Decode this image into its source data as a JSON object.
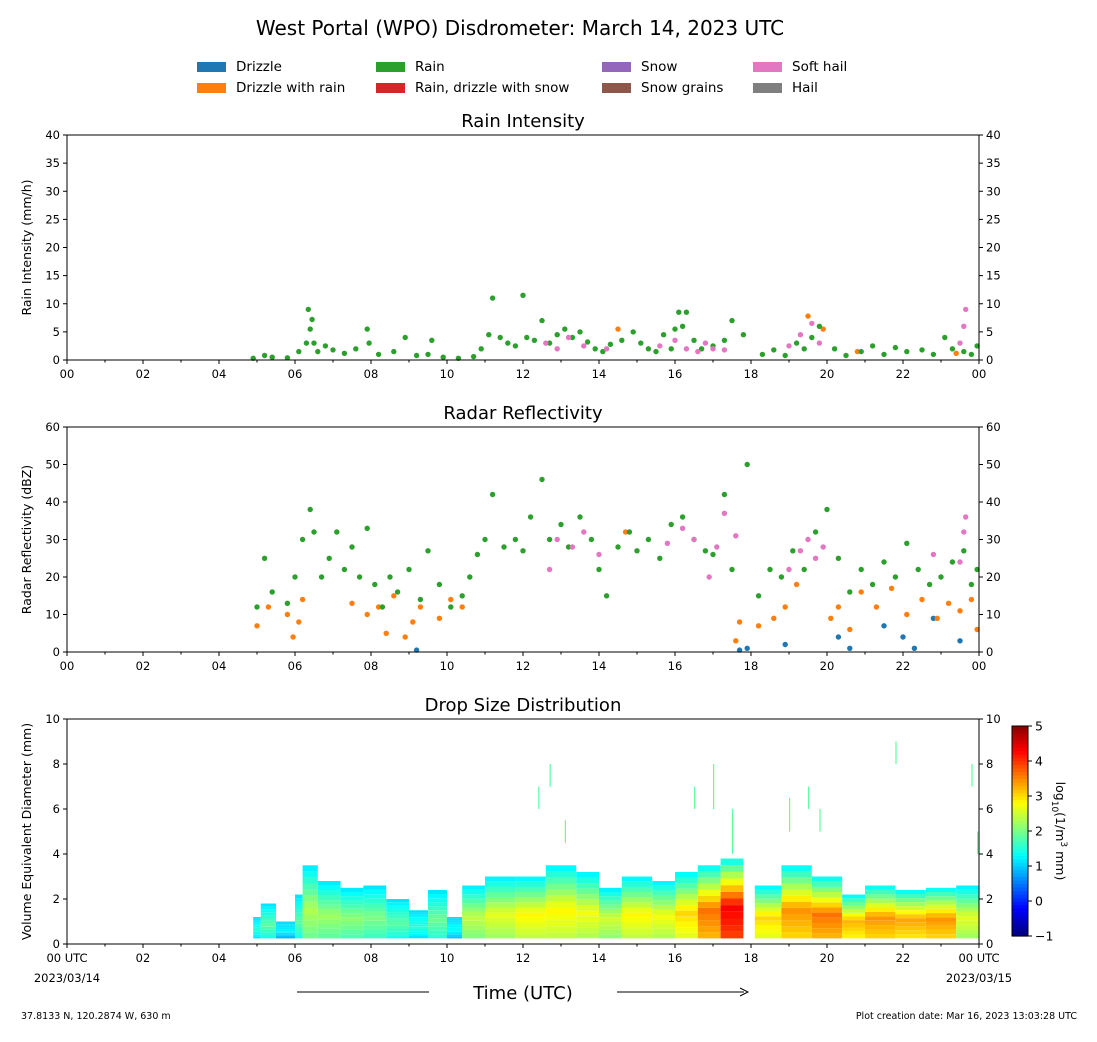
{
  "title": "West Portal (WPO) Disdrometer: March 14, 2023 UTC",
  "legend": [
    {
      "label": "Drizzle",
      "color": "#1f77b4"
    },
    {
      "label": "Drizzle with rain",
      "color": "#ff7f0e"
    },
    {
      "label": "Rain",
      "color": "#2ca02c"
    },
    {
      "label": "Rain, drizzle with snow",
      "color": "#d62728"
    },
    {
      "label": "Snow",
      "color": "#9467bd"
    },
    {
      "label": "Snow grains",
      "color": "#8c564b"
    },
    {
      "label": "Soft hail",
      "color": "#e377c2"
    },
    {
      "label": "Hail",
      "color": "#7f7f7f"
    }
  ],
  "xlabel": "Time (UTC)",
  "footer": {
    "location": "37.8133 N, 120.2874 W, 630 m",
    "created": "Plot creation date: Mar 16, 2023 13:03:28 UTC"
  },
  "chart_data": [
    {
      "type": "scatter",
      "title": "Rain Intensity",
      "ylabel": "Rain Intensity (mm/h)",
      "xlim": [
        0,
        24
      ],
      "ylim": [
        0,
        40
      ],
      "yticks": [
        "0",
        "5",
        "10",
        "15",
        "20",
        "25",
        "30",
        "35",
        "40"
      ],
      "xticks": [
        "00",
        "02",
        "04",
        "06",
        "08",
        "10",
        "12",
        "14",
        "16",
        "18",
        "20",
        "22",
        "00"
      ],
      "series": [
        {
          "name": "Drizzle with rain",
          "color": "#ff7f0e",
          "x": [
            14.5,
            19.5,
            19.9,
            20.8,
            23.4
          ],
          "y": [
            5.5,
            7.8,
            5.5,
            1.5,
            1.2
          ]
        },
        {
          "name": "Rain",
          "color": "#2ca02c",
          "x": [
            4.9,
            5.2,
            5.4,
            5.8,
            6.1,
            6.3,
            6.35,
            6.4,
            6.45,
            6.5,
            6.6,
            6.8,
            7.0,
            7.3,
            7.6,
            7.9,
            7.95,
            8.2,
            8.6,
            8.9,
            9.2,
            9.5,
            9.6,
            9.9,
            10.3,
            10.7,
            10.9,
            11.1,
            11.2,
            11.4,
            11.6,
            11.8,
            12.0,
            12.1,
            12.3,
            12.5,
            12.7,
            12.9,
            13.1,
            13.3,
            13.5,
            13.7,
            13.9,
            14.1,
            14.3,
            14.6,
            14.9,
            15.1,
            15.3,
            15.5,
            15.7,
            15.9,
            16.0,
            16.1,
            16.2,
            16.3,
            16.5,
            16.7,
            17.0,
            17.3,
            17.5,
            17.8,
            18.3,
            18.6,
            18.9,
            19.2,
            19.4,
            19.6,
            19.8,
            20.2,
            20.5,
            20.9,
            21.2,
            21.5,
            21.8,
            22.1,
            22.5,
            22.8,
            23.1,
            23.3,
            23.6,
            23.8,
            23.95
          ],
          "y": [
            0.3,
            0.8,
            0.5,
            0.4,
            1.5,
            3.0,
            9.0,
            5.5,
            7.2,
            3.0,
            1.5,
            2.5,
            1.8,
            1.2,
            2.0,
            5.5,
            3.0,
            1.0,
            1.5,
            4.0,
            0.8,
            1.0,
            3.5,
            0.5,
            0.3,
            0.6,
            2.0,
            4.5,
            11.0,
            4.0,
            3.0,
            2.5,
            11.5,
            4.0,
            3.5,
            7.0,
            3.0,
            4.5,
            5.5,
            4.0,
            5.0,
            3.2,
            2.0,
            1.5,
            2.8,
            3.5,
            5.0,
            3.0,
            2.0,
            1.5,
            4.5,
            2.0,
            5.5,
            8.5,
            6.0,
            8.5,
            3.5,
            2.0,
            2.5,
            3.5,
            7.0,
            4.5,
            1.0,
            1.8,
            0.8,
            3.0,
            2.0,
            4.0,
            6.0,
            2.0,
            0.8,
            1.5,
            2.5,
            1.0,
            2.2,
            1.5,
            1.8,
            1.0,
            4.0,
            2.0,
            1.5,
            1.0,
            2.5
          ]
        },
        {
          "name": "Soft hail",
          "color": "#e377c2",
          "x": [
            12.6,
            12.9,
            13.2,
            13.6,
            14.2,
            15.6,
            16.0,
            16.3,
            16.6,
            16.8,
            17.0,
            17.3,
            19.0,
            19.3,
            19.6,
            19.8,
            23.5,
            23.6,
            23.65
          ],
          "y": [
            3.0,
            2.0,
            4.0,
            2.5,
            2.0,
            2.5,
            3.5,
            2.0,
            1.5,
            3.0,
            2.0,
            1.8,
            2.5,
            4.5,
            6.5,
            3.0,
            3.0,
            6.0,
            9.0
          ]
        }
      ]
    },
    {
      "type": "scatter",
      "title": "Radar Reflectivity",
      "ylabel": "Radar Reflectivity (dBZ)",
      "xlim": [
        0,
        24
      ],
      "ylim": [
        0,
        60
      ],
      "yticks": [
        "0",
        "10",
        "20",
        "30",
        "40",
        "50",
        "60"
      ],
      "xticks": [
        "00",
        "02",
        "04",
        "06",
        "08",
        "10",
        "12",
        "14",
        "16",
        "18",
        "20",
        "22",
        "00"
      ],
      "series": [
        {
          "name": "Drizzle",
          "color": "#1f77b4",
          "x": [
            9.2,
            17.7,
            17.9,
            18.9,
            20.3,
            20.6,
            21.5,
            22.0,
            22.3,
            22.8,
            23.5
          ],
          "y": [
            0.5,
            0.5,
            1.0,
            2.0,
            4.0,
            1.0,
            7.0,
            4.0,
            1.0,
            9.0,
            3.0
          ]
        },
        {
          "name": "Drizzle with rain",
          "color": "#ff7f0e",
          "x": [
            5.0,
            5.3,
            5.8,
            5.95,
            6.1,
            6.2,
            7.5,
            7.9,
            8.2,
            8.4,
            8.6,
            8.9,
            9.1,
            9.3,
            9.8,
            10.1,
            10.4,
            14.7,
            17.6,
            17.7,
            18.2,
            18.6,
            18.9,
            19.2,
            20.1,
            20.3,
            20.6,
            20.9,
            21.3,
            21.7,
            22.1,
            22.5,
            22.9,
            23.2,
            23.5,
            23.8,
            23.95
          ],
          "y": [
            7.0,
            12.0,
            10.0,
            4.0,
            8.0,
            14.0,
            13.0,
            10.0,
            12.0,
            5.0,
            15.0,
            4.0,
            8.0,
            12.0,
            9.0,
            14.0,
            12.0,
            32.0,
            3.0,
            8.0,
            7.0,
            9.0,
            12.0,
            18.0,
            9.0,
            12.0,
            6.0,
            16.0,
            12.0,
            17.0,
            10.0,
            14.0,
            9.0,
            13.0,
            11.0,
            14.0,
            6.0
          ]
        },
        {
          "name": "Rain",
          "color": "#2ca02c",
          "x": [
            5.0,
            5.2,
            5.4,
            5.8,
            6.0,
            6.2,
            6.4,
            6.5,
            6.7,
            6.9,
            7.1,
            7.3,
            7.5,
            7.7,
            7.9,
            8.1,
            8.3,
            8.5,
            8.7,
            9.0,
            9.3,
            9.5,
            9.8,
            10.1,
            10.4,
            10.6,
            10.8,
            11.0,
            11.2,
            11.5,
            11.8,
            12.0,
            12.2,
            12.5,
            12.7,
            13.0,
            13.2,
            13.5,
            13.8,
            14.0,
            14.2,
            14.5,
            14.8,
            15.0,
            15.3,
            15.6,
            15.9,
            16.2,
            16.5,
            16.8,
            17.0,
            17.3,
            17.5,
            17.9,
            18.2,
            18.5,
            18.8,
            19.1,
            19.4,
            19.7,
            20.0,
            20.3,
            20.6,
            20.9,
            21.2,
            21.5,
            21.8,
            22.1,
            22.4,
            22.7,
            23.0,
            23.3,
            23.6,
            23.8,
            23.95
          ],
          "y": [
            12.0,
            25.0,
            16.0,
            13.0,
            20.0,
            30.0,
            38.0,
            32.0,
            20.0,
            25.0,
            32.0,
            22.0,
            28.0,
            20.0,
            33.0,
            18.0,
            12.0,
            20.0,
            16.0,
            22.0,
            14.0,
            27.0,
            18.0,
            12.0,
            15.0,
            20.0,
            26.0,
            30.0,
            42.0,
            28.0,
            30.0,
            27.0,
            36.0,
            46.0,
            30.0,
            34.0,
            28.0,
            36.0,
            30.0,
            22.0,
            15.0,
            28.0,
            32.0,
            27.0,
            30.0,
            25.0,
            34.0,
            36.0,
            30.0,
            27.0,
            26.0,
            42.0,
            22.0,
            50.0,
            15.0,
            22.0,
            20.0,
            27.0,
            22.0,
            32.0,
            38.0,
            25.0,
            16.0,
            22.0,
            18.0,
            24.0,
            20.0,
            29.0,
            22.0,
            18.0,
            20.0,
            24.0,
            27.0,
            18.0,
            22.0
          ]
        },
        {
          "name": "Soft hail",
          "color": "#e377c2",
          "x": [
            12.7,
            12.9,
            13.3,
            13.6,
            14.0,
            15.8,
            16.2,
            16.5,
            16.9,
            17.1,
            17.3,
            17.6,
            19.0,
            19.3,
            19.5,
            19.7,
            19.9,
            22.8,
            23.5,
            23.6,
            23.65
          ],
          "y": [
            22.0,
            30.0,
            28.0,
            32.0,
            26.0,
            29.0,
            33.0,
            30.0,
            20.0,
            28.0,
            37.0,
            31.0,
            22.0,
            27.0,
            30.0,
            25.0,
            28.0,
            26.0,
            24.0,
            32.0,
            36.0
          ]
        }
      ]
    },
    {
      "type": "heatmap",
      "title": "Drop Size Distribution",
      "ylabel": "Volume Equivalent Diameter (mm)",
      "xlim": [
        0,
        24
      ],
      "ylim": [
        0,
        10
      ],
      "yticks": [
        "0",
        "2",
        "4",
        "6",
        "8",
        "10"
      ],
      "xticks": [
        "00 UTC",
        "02",
        "04",
        "06",
        "08",
        "10",
        "12",
        "14",
        "16",
        "18",
        "20",
        "22",
        "00 UTC"
      ],
      "date_left": "2023/03/14",
      "date_right": "2023/03/15",
      "colorbar": {
        "label": "log10(1/m3 mm)",
        "label_main": "log",
        "label_sub": "10",
        "label_rest": "(1/m",
        "label_sup": "3",
        "label_end": " mm)",
        "min": -1,
        "max": 5,
        "ticks": [
          "5",
          "4",
          "3",
          "2",
          "1",
          "0",
          "−1"
        ]
      },
      "columns": [
        {
          "t0": 4.9,
          "t1": 5.1,
          "top": 1.2,
          "peak": 1.5
        },
        {
          "t0": 5.1,
          "t1": 5.5,
          "top": 1.8,
          "peak": 1.8
        },
        {
          "t0": 5.5,
          "t1": 6.0,
          "top": 1.0,
          "peak": 1.2
        },
        {
          "t0": 6.0,
          "t1": 6.2,
          "top": 2.2,
          "peak": 1.8
        },
        {
          "t0": 6.2,
          "t1": 6.6,
          "top": 3.5,
          "peak": 2.3
        },
        {
          "t0": 6.6,
          "t1": 7.2,
          "top": 2.8,
          "peak": 2.2
        },
        {
          "t0": 7.2,
          "t1": 7.8,
          "top": 2.5,
          "peak": 2.1
        },
        {
          "t0": 7.8,
          "t1": 8.4,
          "top": 2.6,
          "peak": 2.0
        },
        {
          "t0": 8.4,
          "t1": 9.0,
          "top": 2.0,
          "peak": 1.8
        },
        {
          "t0": 9.0,
          "t1": 9.5,
          "top": 1.5,
          "peak": 1.5
        },
        {
          "t0": 9.5,
          "t1": 10.0,
          "top": 2.4,
          "peak": 1.9
        },
        {
          "t0": 10.0,
          "t1": 10.4,
          "top": 1.2,
          "peak": 1.3
        },
        {
          "t0": 10.4,
          "t1": 11.0,
          "top": 2.6,
          "peak": 2.4
        },
        {
          "t0": 11.0,
          "t1": 11.8,
          "top": 3.0,
          "peak": 2.6
        },
        {
          "t0": 11.8,
          "t1": 12.6,
          "top": 3.0,
          "peak": 2.8
        },
        {
          "t0": 12.6,
          "t1": 13.4,
          "top": 3.5,
          "peak": 2.8
        },
        {
          "t0": 13.4,
          "t1": 14.0,
          "top": 3.2,
          "peak": 2.7
        },
        {
          "t0": 14.0,
          "t1": 14.6,
          "top": 2.5,
          "peak": 2.5
        },
        {
          "t0": 14.6,
          "t1": 15.4,
          "top": 3.0,
          "peak": 2.8
        },
        {
          "t0": 15.4,
          "t1": 16.0,
          "top": 2.8,
          "peak": 2.7
        },
        {
          "t0": 16.0,
          "t1": 16.6,
          "top": 3.2,
          "peak": 3.0
        },
        {
          "t0": 16.6,
          "t1": 17.2,
          "top": 3.5,
          "peak": 3.6
        },
        {
          "t0": 17.2,
          "t1": 17.8,
          "top": 3.8,
          "peak": 4.3
        },
        {
          "t0": 18.1,
          "t1": 18.8,
          "top": 2.6,
          "peak": 3.0
        },
        {
          "t0": 18.8,
          "t1": 19.6,
          "top": 3.5,
          "peak": 3.4
        },
        {
          "t0": 19.6,
          "t1": 20.4,
          "top": 3.0,
          "peak": 3.6
        },
        {
          "t0": 20.4,
          "t1": 21.0,
          "top": 2.2,
          "peak": 3.2
        },
        {
          "t0": 21.0,
          "t1": 21.8,
          "top": 2.6,
          "peak": 3.4
        },
        {
          "t0": 21.8,
          "t1": 22.6,
          "top": 2.4,
          "peak": 3.3
        },
        {
          "t0": 22.6,
          "t1": 23.4,
          "top": 2.5,
          "peak": 3.4
        },
        {
          "t0": 23.4,
          "t1": 24.0,
          "top": 2.6,
          "peak": 2.6
        }
      ],
      "spikes": [
        {
          "t": 12.4,
          "y0": 6.0,
          "y1": 7.0
        },
        {
          "t": 12.7,
          "y0": 7.0,
          "y1": 8.0
        },
        {
          "t": 13.1,
          "y0": 4.5,
          "y1": 5.5
        },
        {
          "t": 16.5,
          "y0": 6.0,
          "y1": 7.0
        },
        {
          "t": 17.0,
          "y0": 6.0,
          "y1": 8.0
        },
        {
          "t": 17.5,
          "y0": 4.0,
          "y1": 6.0
        },
        {
          "t": 19.0,
          "y0": 5.0,
          "y1": 6.5
        },
        {
          "t": 19.5,
          "y0": 6.0,
          "y1": 7.0
        },
        {
          "t": 19.8,
          "y0": 5.0,
          "y1": 6.0
        },
        {
          "t": 21.8,
          "y0": 8.0,
          "y1": 9.0
        },
        {
          "t": 23.8,
          "y0": 7.0,
          "y1": 8.0
        },
        {
          "t": 23.95,
          "y0": 4.0,
          "y1": 5.0
        }
      ]
    }
  ]
}
